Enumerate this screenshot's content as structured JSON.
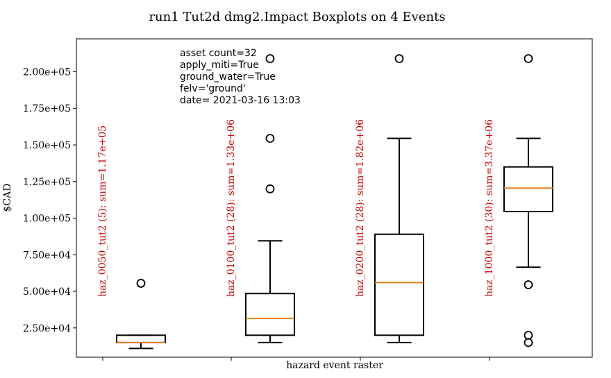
{
  "chart_data": {
    "type": "boxplot",
    "title": "run1 Tut2d dmg2.Impact Boxplots on 4 Events",
    "xlabel": "hazard event raster",
    "ylabel": "$CAD",
    "ylim": [
      5000,
      222500
    ],
    "yticks": [
      25000,
      50000,
      75000,
      100000,
      125000,
      150000,
      175000,
      200000
    ],
    "ytick_labels": [
      "2.50e+04",
      "5.00e+04",
      "7.50e+04",
      "1.00e+05",
      "1.25e+05",
      "1.50e+05",
      "1.75e+05",
      "2.00e+05"
    ],
    "grid": false,
    "metadata_lines": [
      "asset count=32",
      "apply_miti=True",
      "ground_water=True",
      "felv='ground'",
      "date= 2021-03-16 13:03"
    ],
    "colors": {
      "box": "#000000",
      "median": "#e8821e",
      "label": "#cc0000"
    },
    "boxes": [
      {
        "label": "haz_0050_tut2 (5): sum=1.17e+05",
        "whisker_low": 11000,
        "q1": 15000,
        "median": 15000,
        "q3": 20000,
        "whisker_high": 20000,
        "outliers": [
          55500
        ]
      },
      {
        "label": "haz_0100_tut2 (28): sum=1.33e+06",
        "whisker_low": 15000,
        "q1": 20000,
        "median": 31500,
        "q3": 48500,
        "whisker_high": 84500,
        "outliers": [
          120000,
          154500,
          209000
        ]
      },
      {
        "label": "haz_0200_tut2 (28): sum=1.82e+06",
        "whisker_low": 15000,
        "q1": 20000,
        "median": 56000,
        "q3": 89000,
        "whisker_high": 154500,
        "outliers": [
          209000
        ]
      },
      {
        "label": "haz_1000_tut2 (30): sum=3.37e+06",
        "whisker_low": 66500,
        "q1": 104500,
        "median": 120500,
        "q3": 135000,
        "whisker_high": 154500,
        "outliers": [
          54500,
          20000,
          15000,
          209000
        ]
      }
    ]
  }
}
